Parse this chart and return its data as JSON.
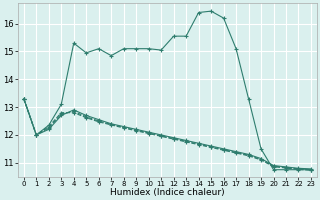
{
  "xlabel": "Humidex (Indice chaleur)",
  "background_color": "#daf0ee",
  "grid_color": "#ffffff",
  "line_color": "#2e7d6e",
  "yticks": [
    11,
    12,
    13,
    14,
    15,
    16
  ],
  "xticks": [
    0,
    1,
    2,
    3,
    4,
    5,
    6,
    7,
    8,
    9,
    10,
    11,
    12,
    13,
    14,
    15,
    16,
    17,
    18,
    19,
    20,
    21,
    22,
    23
  ],
  "line_main_x": [
    0,
    1,
    2,
    3,
    4,
    5,
    6,
    7,
    8,
    9,
    10,
    11,
    12,
    13,
    14,
    15,
    16,
    17,
    18,
    19,
    20,
    21,
    22,
    23
  ],
  "line_main_y": [
    13.3,
    12.0,
    12.35,
    13.1,
    15.3,
    14.95,
    15.1,
    14.85,
    15.1,
    15.1,
    15.1,
    15.05,
    15.55,
    15.55,
    16.4,
    16.45,
    16.2,
    15.1,
    13.3,
    11.5,
    10.75,
    10.75,
    10.75,
    10.75
  ],
  "line2_x": [
    0,
    1,
    2,
    3,
    4,
    5,
    6,
    7,
    8,
    9,
    10,
    11,
    12,
    13,
    14,
    15,
    16,
    17,
    18,
    19,
    20,
    21,
    22,
    23
  ],
  "line2_y": [
    13.3,
    12.0,
    12.2,
    12.7,
    12.9,
    12.7,
    12.55,
    12.4,
    12.3,
    12.2,
    12.1,
    12.0,
    11.9,
    11.8,
    11.7,
    11.6,
    11.5,
    11.4,
    11.3,
    11.15,
    10.9,
    10.85,
    10.8,
    10.78
  ],
  "line3_x": [
    0,
    1,
    2,
    3,
    4,
    5,
    6,
    7,
    8,
    9,
    10,
    11,
    12,
    13,
    14,
    15,
    16,
    17,
    18,
    19,
    20,
    21,
    22,
    23
  ],
  "line3_y": [
    13.3,
    12.0,
    12.25,
    12.75,
    12.85,
    12.65,
    12.5,
    12.38,
    12.27,
    12.17,
    12.07,
    11.97,
    11.87,
    11.77,
    11.67,
    11.57,
    11.47,
    11.37,
    11.27,
    11.12,
    10.88,
    10.83,
    10.78,
    10.75
  ],
  "line4_x": [
    0,
    1,
    2,
    3,
    4,
    5,
    6,
    7,
    8,
    9,
    10,
    11,
    12,
    13,
    14,
    15,
    16,
    17,
    18,
    19,
    20,
    21,
    22,
    23
  ],
  "line4_y": [
    13.3,
    12.0,
    12.3,
    12.8,
    12.8,
    12.62,
    12.47,
    12.36,
    12.25,
    12.15,
    12.05,
    11.95,
    11.85,
    11.75,
    11.65,
    11.55,
    11.45,
    11.35,
    11.25,
    11.1,
    10.86,
    10.81,
    10.76,
    10.73
  ]
}
